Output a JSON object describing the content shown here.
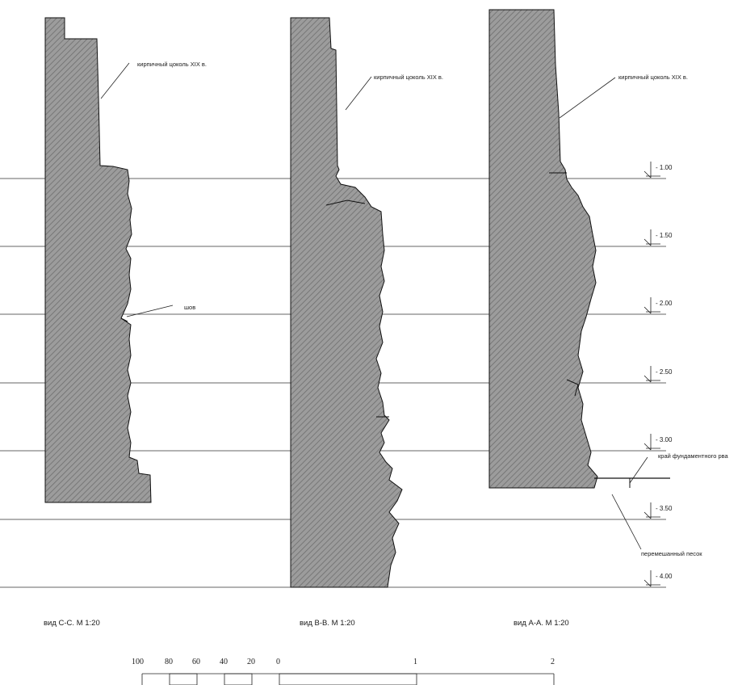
{
  "sections": [
    {
      "caption": "вид С-С. М 1:20",
      "label": "кирпичный цоколь XIX в."
    },
    {
      "caption": "вид В-В. М 1:20",
      "label": "кирпичный цоколь XIX в."
    },
    {
      "caption": "вид А-А. М 1:20",
      "label": "кирпичный цоколь XIX в."
    }
  ],
  "annotations": {
    "seam": "шов",
    "trench_edge": "край фундаментного рва",
    "mixed_sand": "перемешанный песок"
  },
  "levels": [
    "- 1.00",
    "- 1.50",
    "- 2.00",
    "- 2.50",
    "- 3.00",
    "- 3.50",
    "- 4.00"
  ],
  "scale_bar": {
    "labels": [
      "100",
      "80",
      "60",
      "40",
      "20",
      "0",
      "1",
      "2"
    ]
  }
}
